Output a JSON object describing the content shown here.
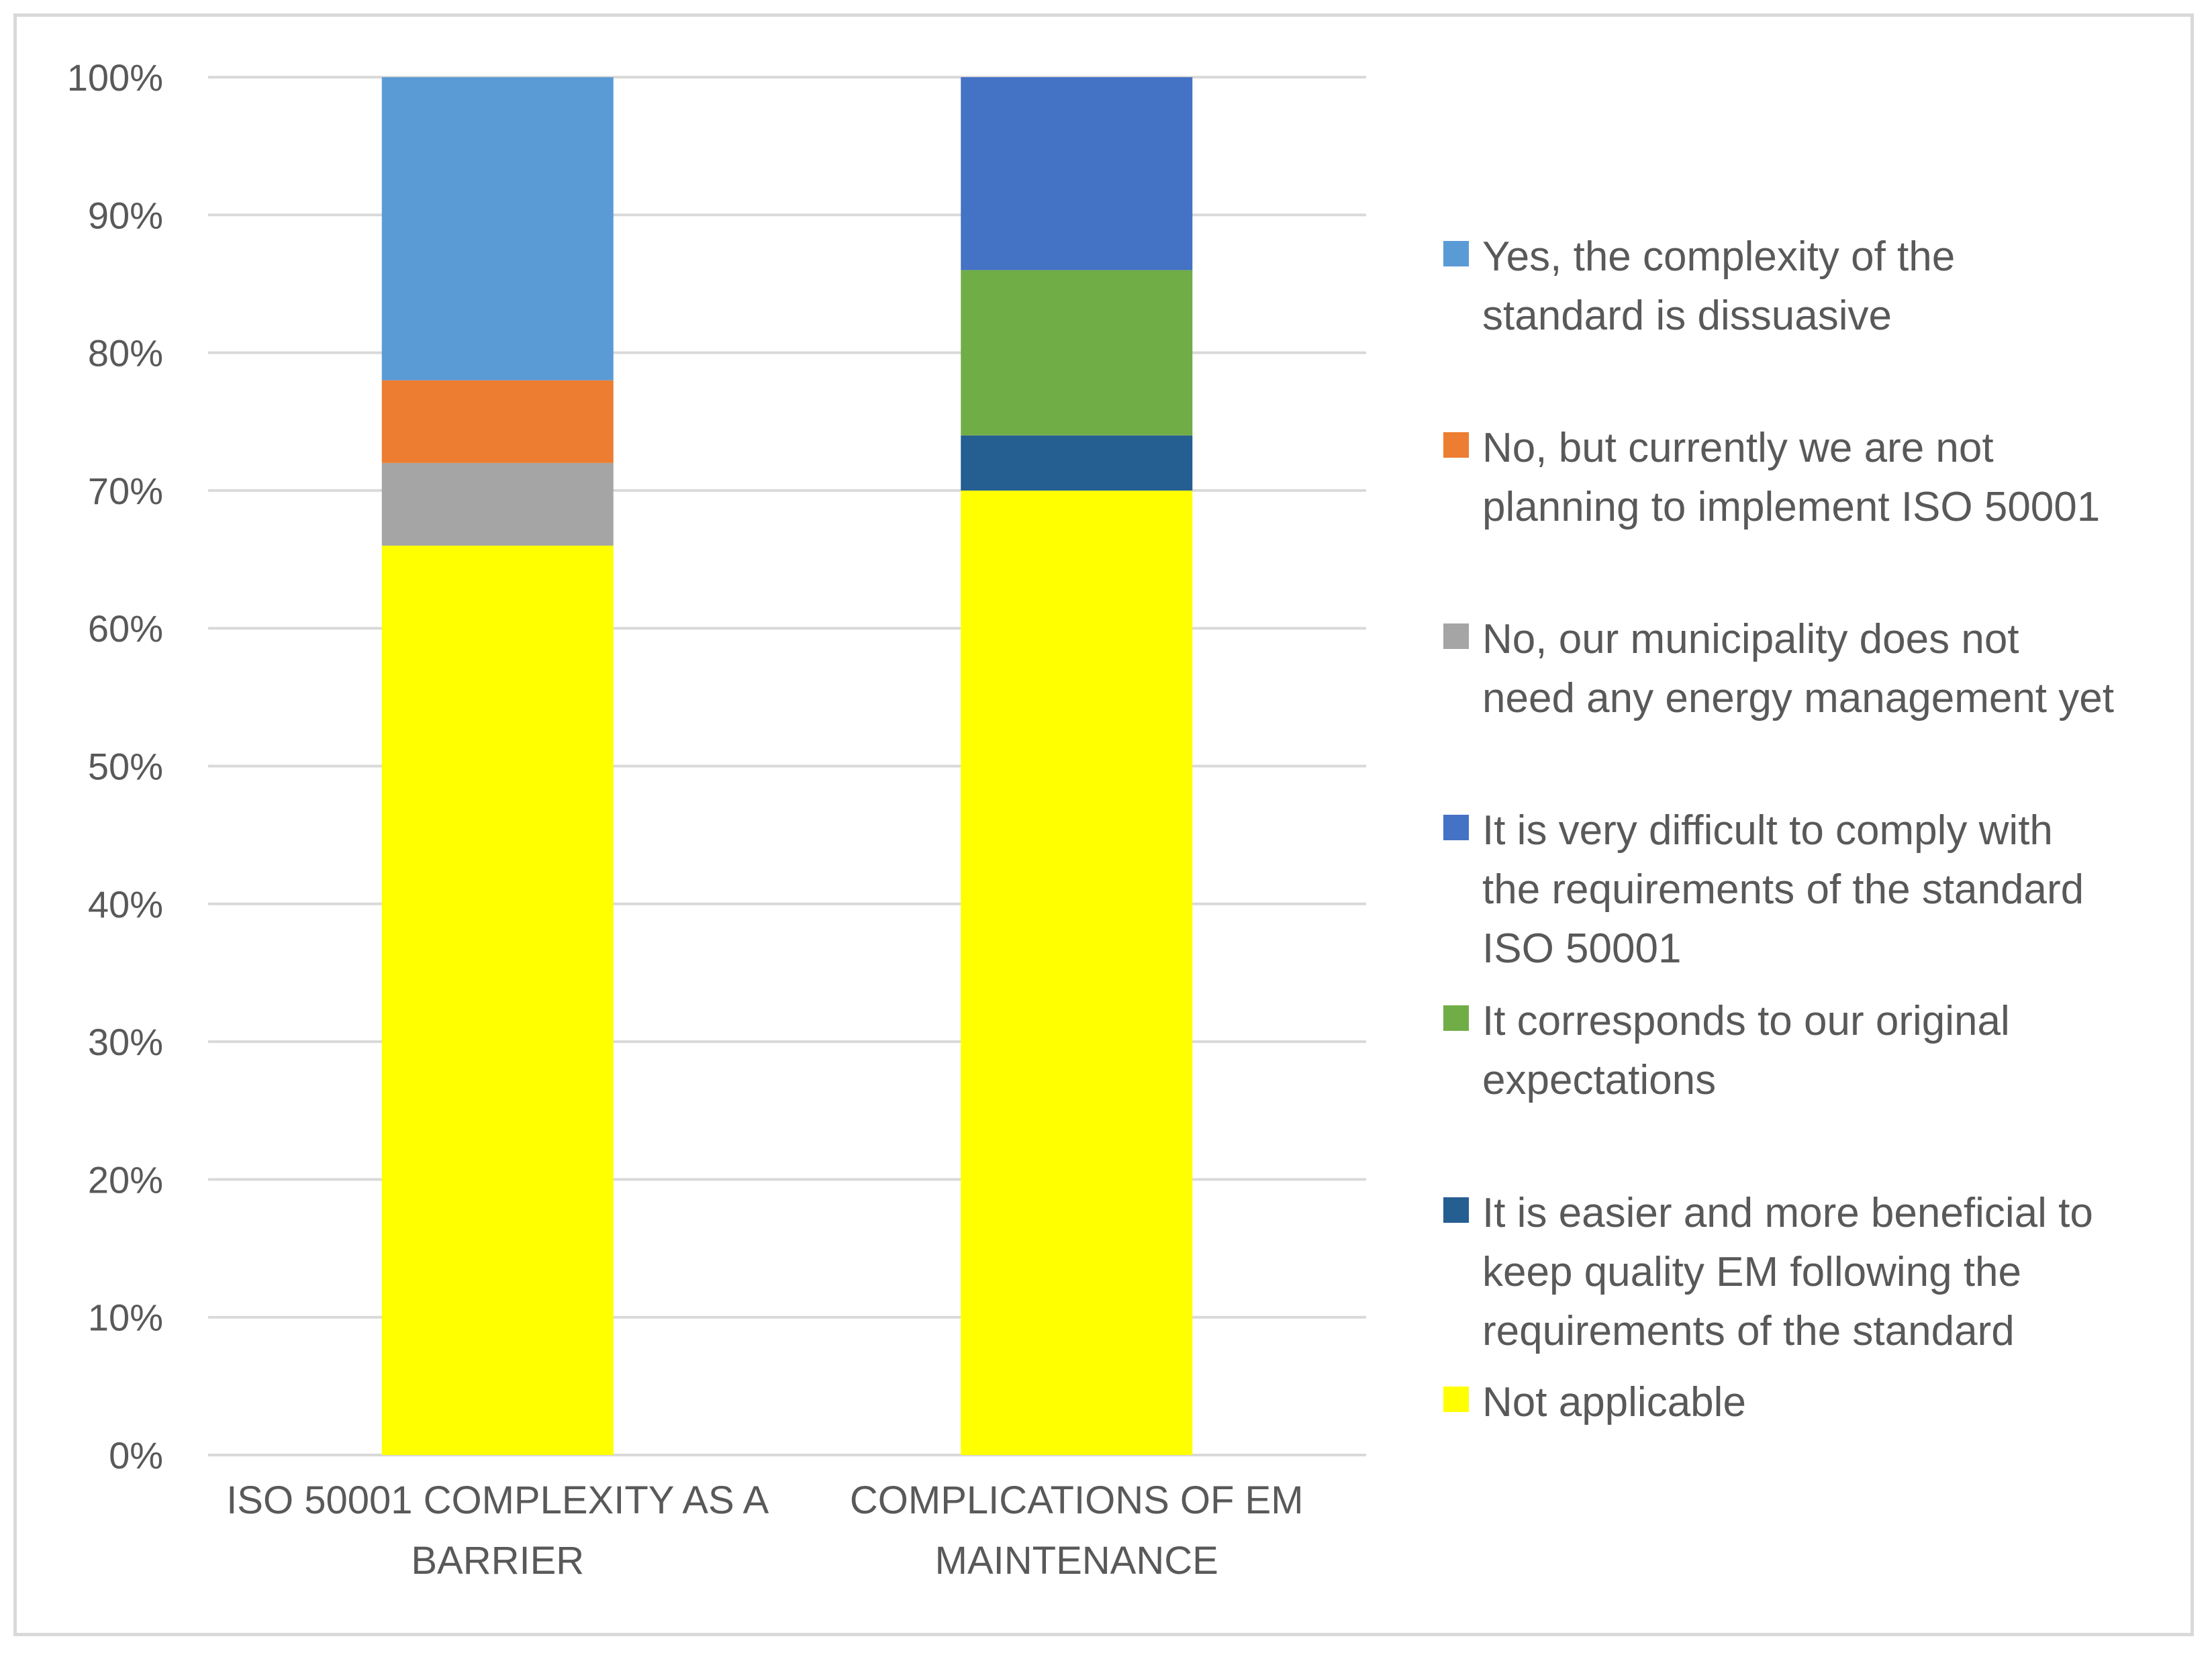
{
  "chart_data": {
    "type": "bar",
    "stacked": true,
    "percent_axis": true,
    "categories": [
      [
        "ISO 50001 COMPLEXITY AS A",
        "BARRIER"
      ],
      [
        "COMPLICATIONS OF EM",
        "MAINTENANCE"
      ]
    ],
    "ylim": [
      0,
      100
    ],
    "yticks": [
      "0%",
      "10%",
      "20%",
      "30%",
      "40%",
      "50%",
      "60%",
      "70%",
      "80%",
      "90%",
      "100%"
    ],
    "grid": true,
    "legend_position": "right",
    "series": [
      {
        "name": "Not applicable",
        "color": "#ffff00",
        "values": [
          66,
          70
        ]
      },
      {
        "name": "It is easier and more beneficial to keep quality EM following the requirements of the standard",
        "color": "#255e91",
        "values": [
          0,
          4
        ]
      },
      {
        "name": "It corresponds to our original expectations",
        "color": "#70ad47",
        "values": [
          0,
          12
        ]
      },
      {
        "name": "It is very difficult to comply with the requirements of the standard ISO 50001",
        "color": "#4472c4",
        "values": [
          0,
          14
        ]
      },
      {
        "name": "No, our municipality does not need any energy management yet",
        "color": "#a5a5a5",
        "values": [
          6,
          0
        ]
      },
      {
        "name": "No, but currently we are not planning to implement ISO 50001",
        "color": "#ed7d31",
        "values": [
          6,
          0
        ]
      },
      {
        "name": "Yes, the complexity of the standard is dissuasive",
        "color": "#5b9bd5",
        "values": [
          22,
          0
        ]
      }
    ],
    "legend": [
      {
        "lines": [
          "Yes, the complexity of the",
          "standard is dissuasive"
        ],
        "color": "#5b9bd5"
      },
      {
        "lines": [
          "No, but currently we are not",
          "planning to implement ISO 50001"
        ],
        "color": "#ed7d31"
      },
      {
        "lines": [
          "No, our municipality does not",
          "need any energy management yet"
        ],
        "color": "#a5a5a5"
      },
      {
        "lines": [
          "It is very difficult to comply with",
          "the requirements of the standard",
          "ISO 50001"
        ],
        "color": "#4472c4"
      },
      {
        "lines": [
          "It corresponds to our original",
          "expectations"
        ],
        "color": "#70ad47"
      },
      {
        "lines": [
          "It is easier and more beneficial to",
          "keep quality EM following the",
          "requirements of the standard"
        ],
        "color": "#255e91"
      },
      {
        "lines": [
          "Not applicable"
        ],
        "color": "#ffff00"
      }
    ]
  }
}
